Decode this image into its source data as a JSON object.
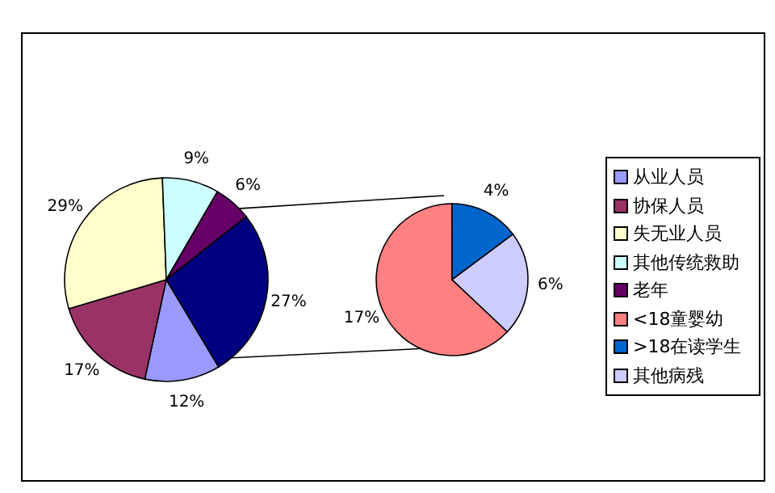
{
  "chart_data": [
    {
      "type": "pie",
      "categories": [
        "从业人员",
        "协保人员",
        "失无业人员",
        "其他传统救助",
        "老年",
        null
      ],
      "values": [
        12,
        17,
        29,
        9,
        6,
        27
      ],
      "colors": [
        "#9999ff",
        "#993366",
        "#ffffcc",
        "#ccffff",
        "#660066",
        "#000080"
      ],
      "value_labels": [
        "12%",
        "17%",
        "29%",
        "9%",
        "6%",
        "27%"
      ],
      "legend": "right"
    },
    {
      "type": "pie",
      "categories": [
        "<18童婴幼",
        ">18在读学生",
        "其他病残"
      ],
      "values": [
        17,
        4,
        6
      ],
      "colors": [
        "#ff8080",
        "#0066cc",
        "#ccccff"
      ],
      "value_labels": [
        "17%",
        "4%",
        "6%"
      ],
      "legend": "right"
    }
  ]
}
